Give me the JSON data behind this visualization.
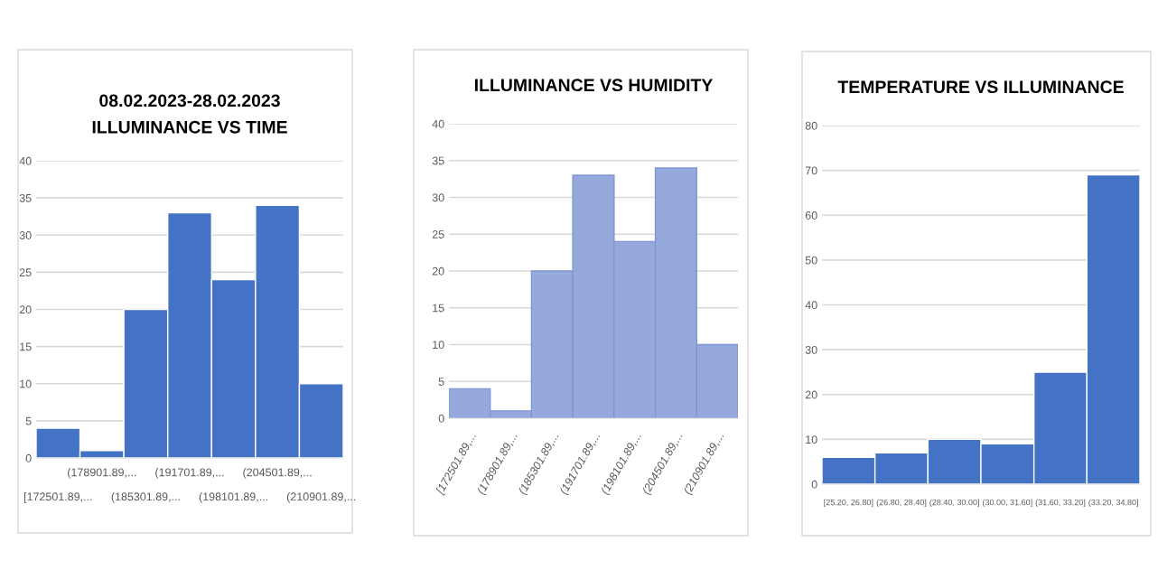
{
  "chart_data": [
    {
      "type": "bar",
      "title": "08.02.2023-28.02.2023\nILLUMINANCE VS TIME",
      "categories": [
        "[172501.89,...",
        "(178901.89,...",
        "(185301.89,...",
        "(191701.89,...",
        "(198101.89,...",
        "(204501.89,...",
        "(210901.89,..."
      ],
      "values": [
        4,
        1,
        20,
        33,
        24,
        34,
        10
      ],
      "color": "#4472c4",
      "ylim": [
        0,
        40
      ],
      "yticks": [
        0,
        5,
        10,
        15,
        20,
        25,
        30,
        35,
        40
      ],
      "grid": "y",
      "legend": false
    },
    {
      "type": "bar",
      "title": "ILLUMINANCE VS HUMIDITY",
      "categories": [
        "[172501.89,...",
        "(178901.89,...",
        "(185301.89,...",
        "(191701.89,...",
        "(198101.89,...",
        "(204501.89,...",
        "(210901.89,..."
      ],
      "values": [
        4,
        1,
        20,
        33,
        24,
        34,
        10
      ],
      "color": "#95a9dc",
      "ylim": [
        0,
        40
      ],
      "yticks": [
        0,
        5,
        10,
        15,
        20,
        25,
        30,
        35,
        40
      ],
      "grid": "y",
      "legend": false
    },
    {
      "type": "bar",
      "title": "TEMPERATURE VS ILLUMINANCE",
      "categories": [
        "[25.20, 26.80]",
        "(26.80, 28.40]",
        "(28.40, 30.00]",
        "(30.00, 31.60]",
        "(31.60, 33.20]",
        "(33.20, 34.80]"
      ],
      "values": [
        6,
        7,
        10,
        9,
        25,
        69
      ],
      "color": "#4472c4",
      "ylim": [
        0,
        80
      ],
      "yticks": [
        0,
        10,
        20,
        30,
        40,
        50,
        60,
        70,
        80
      ],
      "grid": "y",
      "legend": false
    }
  ]
}
